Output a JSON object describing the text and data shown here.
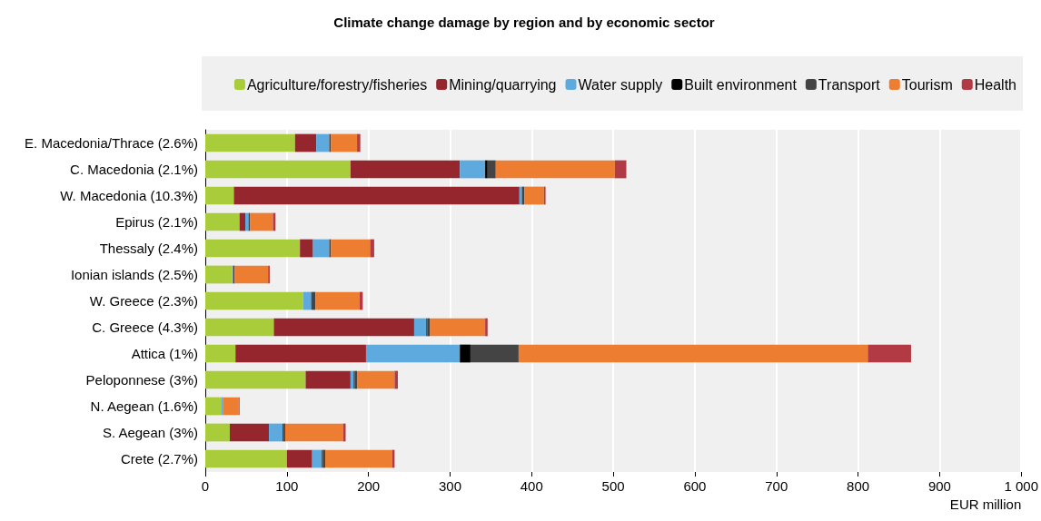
{
  "chart_data": {
    "type": "bar",
    "orientation": "horizontal",
    "stacked": true,
    "title": "Climate change damage by region and by economic sector",
    "xlabel": "EUR million",
    "categories": [
      "E. Macedonia/Thrace (2.6%)",
      "C. Macedonia (2.1%)",
      "W. Macedonia (10.3%)",
      "Epirus (2.1%)",
      "Thessaly (2.4%)",
      "Ionian islands (2.5%)",
      "W. Greece (2.3%)",
      "C. Greece (4.3%)",
      "Attica (1%)",
      "Peloponnese (3%)",
      "N. Aegean (1.6%)",
      "S. Aegean (3%)",
      "Crete (2.7%)"
    ],
    "series": [
      {
        "name": "Agriculture/forestry/fisheries",
        "color": "#a9cd3a",
        "values": [
          110,
          178,
          35,
          42,
          116,
          33,
          120,
          84,
          37,
          123,
          20,
          30,
          100
        ]
      },
      {
        "name": "Mining/quarrying",
        "color": "#96262e",
        "values": [
          26,
          134,
          350,
          7,
          16,
          0,
          0,
          172,
          160,
          55,
          0,
          48,
          31
        ]
      },
      {
        "name": "Water supply",
        "color": "#5eaadf",
        "values": [
          16,
          31,
          3,
          4,
          20,
          1,
          10,
          15,
          115,
          4,
          2,
          17,
          12
        ]
      },
      {
        "name": "Built environment",
        "color": "#000000",
        "values": [
          null,
          3,
          0,
          0,
          null,
          0,
          1,
          1,
          13,
          1,
          0,
          1,
          1
        ]
      },
      {
        "name": "Transport",
        "color": "#444444",
        "values": [
          2,
          10,
          3,
          2,
          2,
          2,
          4,
          3,
          59,
          3,
          null,
          2,
          3
        ]
      },
      {
        "name": "Tourism",
        "color": "#ed7d31",
        "values": [
          32,
          146,
          24,
          28,
          48,
          41,
          54,
          68,
          428,
          46,
          19,
          71,
          82
        ]
      },
      {
        "name": "Health",
        "color": "#b23a44",
        "values": [
          4,
          14,
          2,
          3,
          5,
          2,
          4,
          3,
          53,
          4,
          1,
          3,
          3
        ]
      }
    ],
    "xlim": [
      0,
      1000
    ],
    "xticks": [
      0,
      100,
      200,
      300,
      400,
      500,
      600,
      700,
      800,
      900,
      {
        "value": 1000,
        "label": "1 000"
      }
    ],
    "grid": "x",
    "legend": "top"
  }
}
